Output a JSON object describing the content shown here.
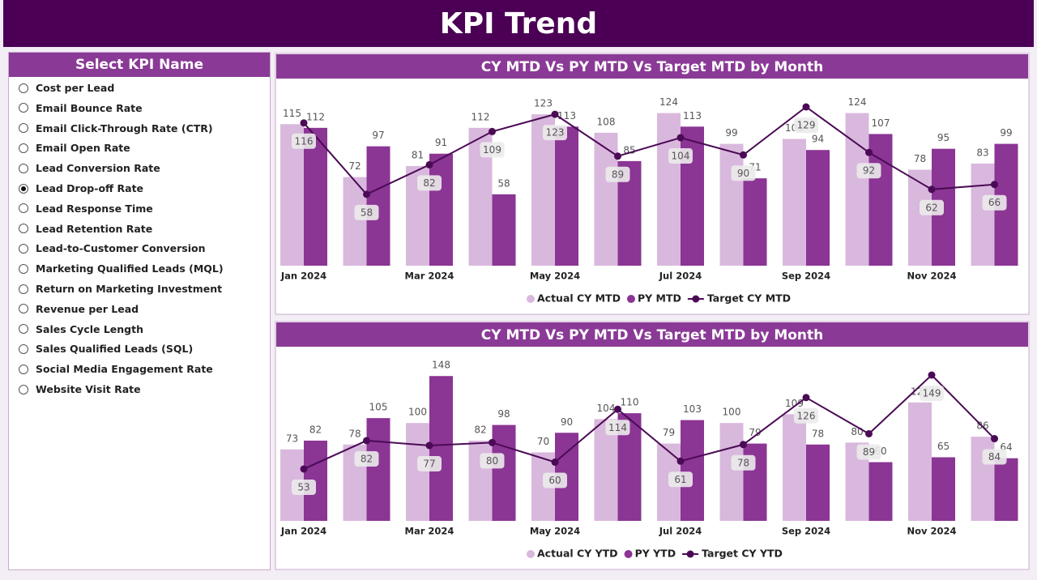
{
  "header": {
    "title": "KPI Trend"
  },
  "slicer": {
    "title": "Select KPI Name",
    "options": [
      "Cost per Lead",
      "Email Bounce Rate",
      "Email Click-Through Rate (CTR)",
      "Email Open Rate",
      "Lead Conversion Rate",
      "Lead Drop-off Rate",
      "Lead Response Time",
      "Lead Retention Rate",
      "Lead-to-Customer Conversion",
      "Marketing Qualified Leads (MQL)",
      "Return on Marketing Investment",
      "Revenue per Lead",
      "Sales Cycle Length",
      "Sales Qualified Leads (SQL)",
      "Social Media Engagement Rate",
      "Website Visit Rate"
    ],
    "selected": "Lead Drop-off Rate"
  },
  "chart_data": [
    {
      "type": "bar-line",
      "title": "CY MTD Vs PY MTD Vs Target MTD by Month",
      "categories": [
        "Jan 2024",
        null,
        "Mar 2024",
        null,
        "May 2024",
        null,
        "Jul 2024",
        null,
        "Sep 2024",
        null,
        "Nov 2024",
        null
      ],
      "series": [
        {
          "name": "Actual CY MTD",
          "kind": "bar",
          "color": "#d9b8dd",
          "values": [
            115,
            72,
            81,
            112,
            123,
            108,
            124,
            99,
            103,
            124,
            78,
            83
          ]
        },
        {
          "name": "PY MTD",
          "kind": "bar",
          "color": "#8b3594",
          "values": [
            112,
            97,
            91,
            58,
            113,
            85,
            113,
            71,
            94,
            107,
            95,
            99
          ]
        },
        {
          "name": "Target CY MTD",
          "kind": "line",
          "color": "#4b0a55",
          "values": [
            116,
            58,
            82,
            109,
            123,
            89,
            104,
            90,
            129,
            92,
            62,
            66
          ]
        }
      ]
    },
    {
      "type": "bar-line",
      "title": "CY MTD Vs PY MTD Vs Target MTD by Month",
      "categories": [
        "Jan 2024",
        null,
        "Mar 2024",
        null,
        "May 2024",
        null,
        "Jul 2024",
        null,
        "Sep 2024",
        null,
        "Nov 2024",
        null
      ],
      "series": [
        {
          "name": "Actual CY YTD",
          "kind": "bar",
          "color": "#d9b8dd",
          "values": [
            73,
            78,
            100,
            82,
            70,
            104,
            79,
            100,
            109,
            80,
            121,
            86
          ]
        },
        {
          "name": "PY YTD",
          "kind": "bar",
          "color": "#8b3594",
          "values": [
            82,
            105,
            148,
            98,
            90,
            110,
            103,
            79,
            78,
            60,
            65,
            64
          ]
        },
        {
          "name": "Target CY YTD",
          "kind": "line",
          "color": "#4b0a55",
          "values": [
            53,
            82,
            77,
            80,
            60,
            114,
            61,
            78,
            126,
            89,
            149,
            84
          ]
        }
      ]
    }
  ]
}
